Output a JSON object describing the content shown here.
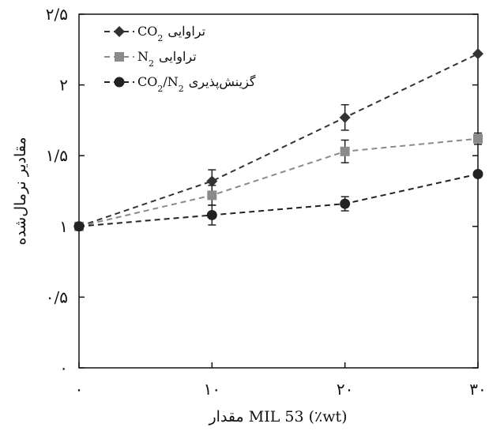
{
  "chart_data": {
    "type": "line",
    "title": "",
    "xlabel": "مقدار MIL 53 (٪wt)",
    "ylabel": "مقادیر نرمال‌شده",
    "x": [
      0,
      10,
      20,
      30
    ],
    "x_tick_labels": [
      "۰",
      "۱۰",
      "۲۰",
      "۳۰"
    ],
    "xlim": [
      0,
      30
    ],
    "y_ticks": [
      0,
      0.5,
      1,
      1.5,
      2,
      2.5
    ],
    "y_tick_labels": [
      "۰",
      "۰/۵",
      "۱",
      "۱/۵",
      "۲",
      "۲/۵"
    ],
    "ylim": [
      0,
      2.5
    ],
    "grid": false,
    "legend_position": "top-left",
    "series": [
      {
        "name": "تراوایی CO₂",
        "legend_main": "CO",
        "legend_sub": "2",
        "legend_suffix": "تراوایی",
        "marker": "diamond",
        "color": "#333333",
        "values": [
          1.0,
          1.32,
          1.77,
          2.22
        ],
        "errors": [
          0,
          0.08,
          0.09,
          0
        ]
      },
      {
        "name": "تراوایی N₂",
        "legend_main": "N",
        "legend_sub": "2",
        "legend_suffix": "تراوایی",
        "marker": "square",
        "color": "#8a8a8a",
        "values": [
          1.0,
          1.22,
          1.53,
          1.62
        ],
        "errors": [
          0,
          0.07,
          0.08,
          0.04
        ]
      },
      {
        "name": "گزینش‌پذیری CO₂/N₂",
        "legend_main": "CO",
        "legend_sub": "2",
        "legend_main2": "/N",
        "legend_sub2": "2",
        "legend_suffix": "گزینش‌پذیری",
        "marker": "circle",
        "color": "#222222",
        "values": [
          1.0,
          1.08,
          1.16,
          1.37
        ],
        "errors": [
          0,
          0.07,
          0.05,
          0
        ]
      }
    ]
  }
}
